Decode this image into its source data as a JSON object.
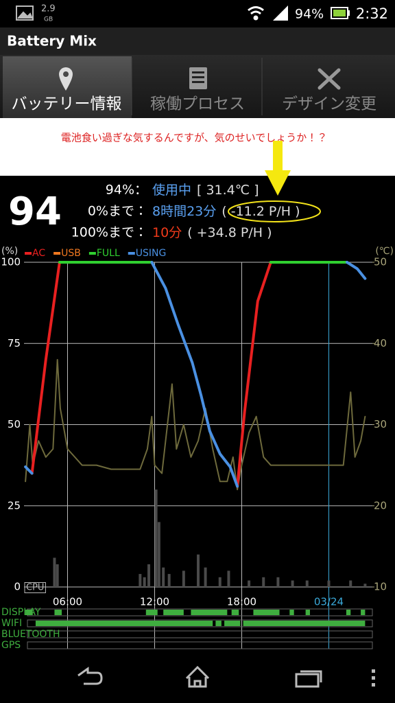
{
  "status_bar": {
    "storage_value": "2.9",
    "storage_unit": "GB",
    "battery": "94%",
    "time": "2:32"
  },
  "app_bar": {
    "title": "Battery Mix"
  },
  "tabs": [
    "バッテリー情報",
    "稼働プロセス",
    "デザイン変更"
  ],
  "note": "電池食い過ぎな気するんですが、気のせいでしょうか！？",
  "summary": {
    "level": "94",
    "rows": [
      {
        "label": "94%：",
        "value": "使用中",
        "detail": "[ 31.4℃ ]"
      },
      {
        "label": "0%まで：",
        "value": "8時間23分",
        "detail": "( -11.2 P/H )"
      },
      {
        "label": "100%まで：",
        "value": "10分",
        "detail": "( +34.8 P/H )"
      }
    ]
  },
  "chart_data": {
    "type": "line",
    "y_label": "(%)",
    "y2_label": "(℃)",
    "cpu_label": "CPU",
    "xlim": [
      3,
      27
    ],
    "xticks": [
      {
        "value": 6,
        "label": "06:00"
      },
      {
        "value": 12,
        "label": "12:00"
      },
      {
        "value": 18,
        "label": "18:00"
      },
      {
        "value": 24,
        "label": "03/24"
      }
    ],
    "ylim": [
      0,
      100
    ],
    "yticks": [
      0,
      25,
      50,
      75,
      100
    ],
    "y2lim": [
      10,
      50
    ],
    "y2ticks": [
      10,
      20,
      30,
      40,
      50
    ],
    "grid": true,
    "series": [
      {
        "name": "AC",
        "color": "#e82020",
        "x": [
          3.55,
          4.5,
          5.45,
          null,
          17.7,
          18.2,
          19.1,
          20.0
        ],
        "values": [
          35,
          70,
          100,
          null,
          31,
          54,
          88,
          100
        ]
      },
      {
        "name": "USB",
        "color": "#f07820",
        "x": [],
        "values": []
      },
      {
        "name": "FULL",
        "color": "#30d030",
        "x": [
          5.45,
          11.8,
          null,
          20.0,
          25.25
        ],
        "values": [
          100,
          100,
          null,
          100,
          100
        ]
      },
      {
        "name": "USING",
        "color": "#4a90e2",
        "x": [
          3.1,
          3.55,
          null,
          11.8,
          12.75,
          13.6,
          14.6,
          15.2,
          15.8,
          16.5,
          17.2,
          17.7,
          null,
          25.25,
          25.96,
          26.5
        ],
        "values": [
          37,
          35,
          null,
          100,
          92,
          81,
          69,
          59,
          48,
          41,
          37,
          31,
          null,
          100,
          98,
          95
        ]
      }
    ],
    "temperature": {
      "color": "#6e6a3c",
      "axis": "y2",
      "x": [
        3.1,
        3.4,
        3.6,
        4.0,
        4.5,
        5.0,
        5.3,
        5.5,
        6.0,
        7,
        8,
        9,
        10,
        11,
        11.5,
        11.8,
        12.0,
        12.5,
        13.2,
        13.5,
        14.0,
        14.5,
        15,
        15.5,
        16,
        16.5,
        17.0,
        17.4,
        17.7,
        18,
        18.5,
        19,
        19.5,
        20,
        21,
        22,
        23,
        24,
        25,
        25.5,
        25.8,
        26.2,
        26.5
      ],
      "values": [
        23,
        30,
        25,
        28,
        26,
        27,
        38,
        32,
        27,
        25,
        25,
        24.5,
        24.5,
        24.5,
        27,
        31,
        25,
        24,
        35,
        27,
        30,
        26,
        28,
        32,
        27,
        23,
        23,
        26,
        22,
        25,
        29,
        31,
        26,
        25,
        25,
        25,
        25,
        25,
        25,
        34,
        26,
        28,
        31
      ]
    },
    "cpu": {
      "color": "#4a4a4a",
      "x": [
        5.1,
        5.3,
        11.0,
        11.3,
        11.6,
        12.1,
        12.3,
        12.6,
        13.0,
        14.0,
        15.0,
        15.5,
        16.5,
        17.1,
        18.5,
        19.5,
        20.5,
        21.5,
        22.5,
        24.0,
        25.5,
        26.5
      ],
      "values": [
        9,
        7,
        4,
        3,
        7,
        30,
        20,
        6,
        4,
        5,
        10,
        6,
        3,
        5,
        2,
        3,
        3,
        2,
        2,
        2,
        2,
        1
      ]
    },
    "timelines": [
      {
        "name": "DISPLAY",
        "color": "#3fae3f",
        "intervals": [
          [
            3.1,
            3.6
          ],
          [
            5.1,
            5.6
          ],
          [
            11.4,
            12.2
          ],
          [
            12.6,
            14.0
          ],
          [
            14.5,
            17.0
          ],
          [
            17.3,
            17.8
          ],
          [
            18.8,
            20.6
          ],
          [
            21.3,
            21.6
          ],
          [
            22.4,
            22.7
          ],
          [
            25.2,
            25.5
          ],
          [
            26.2,
            26.5
          ]
        ]
      },
      {
        "name": "WIFI",
        "color": "#3fae3f",
        "intervals": [
          [
            3.8,
            16.0
          ],
          [
            16.2,
            16.6
          ],
          [
            16.8,
            17.9
          ],
          [
            18.1,
            26.5
          ]
        ]
      },
      {
        "name": "BLUETOOTH",
        "color": "#3fae3f",
        "intervals": []
      },
      {
        "name": "GPS",
        "color": "#3fae3f",
        "intervals": []
      }
    ]
  }
}
